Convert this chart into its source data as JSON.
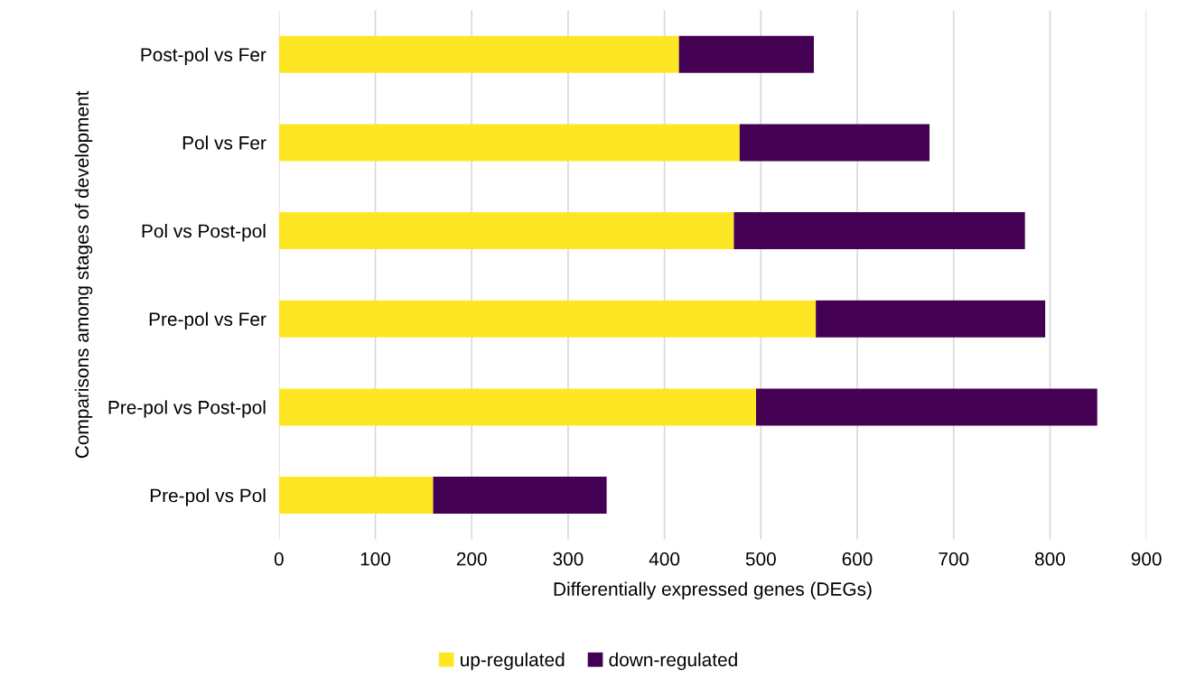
{
  "chart_data": {
    "type": "bar",
    "orientation": "horizontal",
    "stacked": true,
    "xlabel": "Differentially expressed genes (DEGs)",
    "ylabel": "Comparisons among stages of development",
    "categories": [
      "Post-pol vs Fer",
      "Pol vs Fer",
      "Pol vs Post-pol",
      "Pre-pol vs Fer",
      "Pre-pol vs Post-pol",
      "Pre-pol vs Pol"
    ],
    "series": [
      {
        "name": "up-regulated",
        "color": "#fde725",
        "values": [
          415,
          478,
          472,
          557,
          495,
          160
        ]
      },
      {
        "name": "down-regulated",
        "color": "#440154",
        "values": [
          140,
          197,
          302,
          238,
          354,
          180
        ]
      }
    ],
    "xlim": [
      0,
      900
    ],
    "xticks": [
      0,
      100,
      200,
      300,
      400,
      500,
      600,
      700,
      800,
      900
    ],
    "grid": "x",
    "legend": "bottom"
  }
}
